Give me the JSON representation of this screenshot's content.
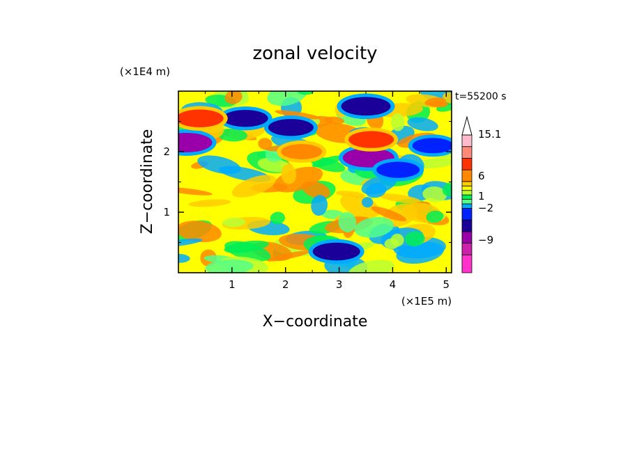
{
  "chart_data": {
    "type": "heatmap",
    "title": "zonal velocity",
    "xlabel": "X−coordinate",
    "ylabel": "Z−coordinate",
    "x_unit": "(×1E5 m)",
    "y_unit": "(×1E4 m)",
    "time_label": "t=55200 s",
    "xlim": [
      0,
      5.1
    ],
    "ylim": [
      0,
      3.0
    ],
    "x_ticks": [
      1,
      2,
      3,
      4,
      5
    ],
    "y_ticks": [
      1,
      2
    ],
    "x_tick_labels": [
      "1",
      "2",
      "3",
      "4",
      "5"
    ],
    "y_tick_labels": [
      "1",
      "2"
    ],
    "grid": false,
    "colorbar": {
      "levels": [
        -15,
        -12,
        -9,
        -6,
        -3,
        -2,
        -1,
        0,
        1,
        2,
        3,
        6,
        9,
        12,
        15.1
      ],
      "colors": [
        "#ff33cc",
        "#cc22aa",
        "#9900aa",
        "#1a0099",
        "#0022ff",
        "#00aaff",
        "#55ff88",
        "#00ee55",
        "#bbff33",
        "#ffff00",
        "#ffcc00",
        "#ff8800",
        "#ff3300",
        "#ff8877",
        "#ffbbcc"
      ],
      "tick_labels": [
        "15.1",
        "6",
        "1",
        "−2",
        "−9"
      ],
      "max_arrow": true
    },
    "features": [
      {
        "x": 0.15,
        "z": 2.15,
        "value": -10
      },
      {
        "x": 1.25,
        "z": 2.55,
        "value": -7
      },
      {
        "x": 2.1,
        "z": 2.4,
        "value": -7
      },
      {
        "x": 3.5,
        "z": 2.75,
        "value": -9
      },
      {
        "x": 3.55,
        "z": 1.9,
        "value": -10
      },
      {
        "x": 4.1,
        "z": 1.7,
        "value": -6
      },
      {
        "x": 4.75,
        "z": 2.1,
        "value": -5
      },
      {
        "x": 0.4,
        "z": 2.55,
        "value": 8
      },
      {
        "x": 3.6,
        "z": 2.2,
        "value": 7
      },
      {
        "x": 2.3,
        "z": 2.0,
        "value": 5
      },
      {
        "x": 2.95,
        "z": 0.35,
        "value": -8
      }
    ]
  }
}
